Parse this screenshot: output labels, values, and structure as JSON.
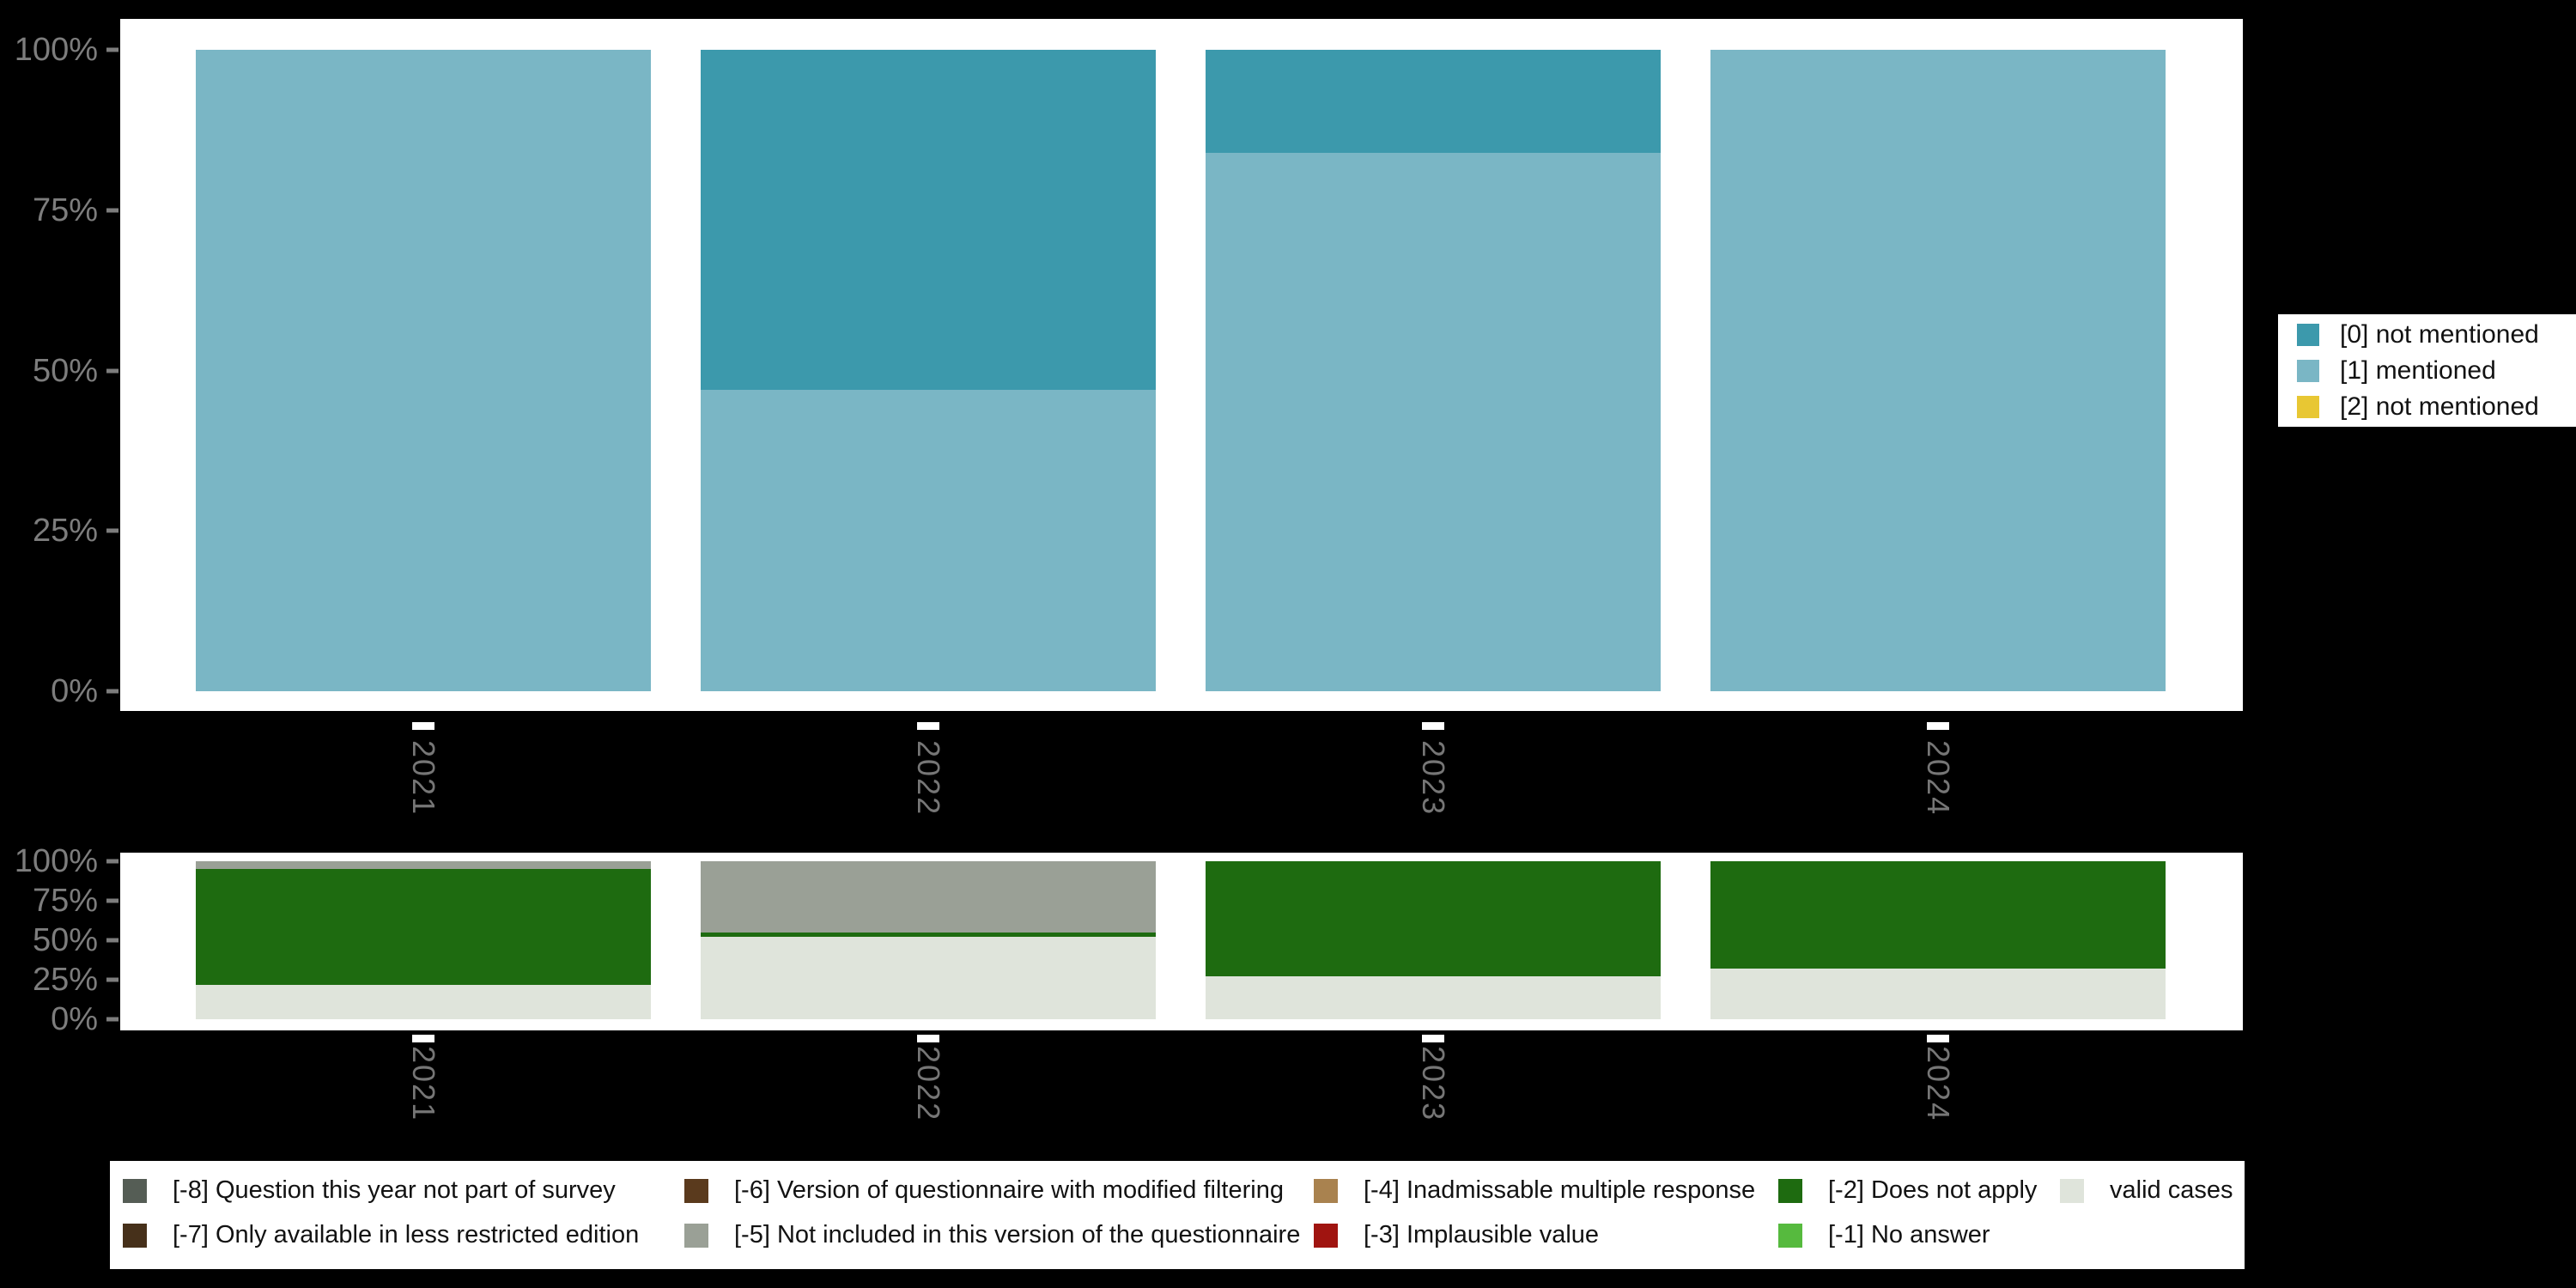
{
  "figure": {
    "background_color": "#000000",
    "panel_color": "#ffffff",
    "axis_text_color": "#7d7d7d"
  },
  "chart_data": [
    {
      "type": "bar",
      "stacked": true,
      "title": "",
      "categories": [
        "2021",
        "2022",
        "2023",
        "2024"
      ],
      "yticks": [
        "100%",
        "75%",
        "50%",
        "25%",
        "0%"
      ],
      "ytick_values": [
        100,
        75,
        50,
        25,
        0
      ],
      "ylim": [
        0,
        100
      ],
      "unit": "%",
      "grid": false,
      "legend_position": "right",
      "series": [
        {
          "name": "[0] not mentioned",
          "color": "#3C99AC",
          "values": [
            0,
            53,
            16,
            0
          ]
        },
        {
          "name": "[1] mentioned",
          "color": "#7AB6C5",
          "values": [
            100,
            47,
            84,
            100
          ]
        },
        {
          "name": "[2] not mentioned",
          "color": "#E8C733",
          "values": [
            0,
            0,
            0,
            0
          ]
        }
      ]
    },
    {
      "type": "bar",
      "stacked": true,
      "title": "",
      "categories": [
        "2021",
        "2022",
        "2023",
        "2024"
      ],
      "yticks": [
        "100%",
        "75%",
        "50%",
        "25%",
        "0%"
      ],
      "ytick_values": [
        100,
        75,
        50,
        25,
        0
      ],
      "ylim": [
        0,
        100
      ],
      "unit": "%",
      "grid": false,
      "legend_position": "bottom",
      "series": [
        {
          "name": "[-8] Question this year not part of survey",
          "color": "#555D55",
          "values": [
            0,
            0,
            0,
            0
          ]
        },
        {
          "name": "[-7] Only available in less restricted edition",
          "color": "#46301A",
          "values": [
            0,
            0,
            0,
            0
          ]
        },
        {
          "name": "[-6] Version of questionnaire with modified filtering",
          "color": "#5A3A1D",
          "values": [
            0,
            0,
            0,
            0
          ]
        },
        {
          "name": "[-5] Not included in this version of the questionnaire",
          "color": "#9AA096",
          "values": [
            5,
            45,
            0,
            0
          ]
        },
        {
          "name": "[-4] Inadmissable multiple response",
          "color": "#A9824F",
          "values": [
            0,
            0,
            0,
            0
          ]
        },
        {
          "name": "[-3] Implausible value",
          "color": "#A01410",
          "values": [
            0,
            0,
            0,
            0
          ]
        },
        {
          "name": "[-2] Does not apply",
          "color": "#1E6B10",
          "values": [
            73,
            3,
            73,
            68
          ]
        },
        {
          "name": "[-1] No answer",
          "color": "#56BA3E",
          "values": [
            0,
            0,
            0,
            0
          ]
        },
        {
          "name": "valid cases",
          "color": "#DFE4DB",
          "values": [
            22,
            52,
            27,
            32
          ]
        }
      ]
    }
  ]
}
